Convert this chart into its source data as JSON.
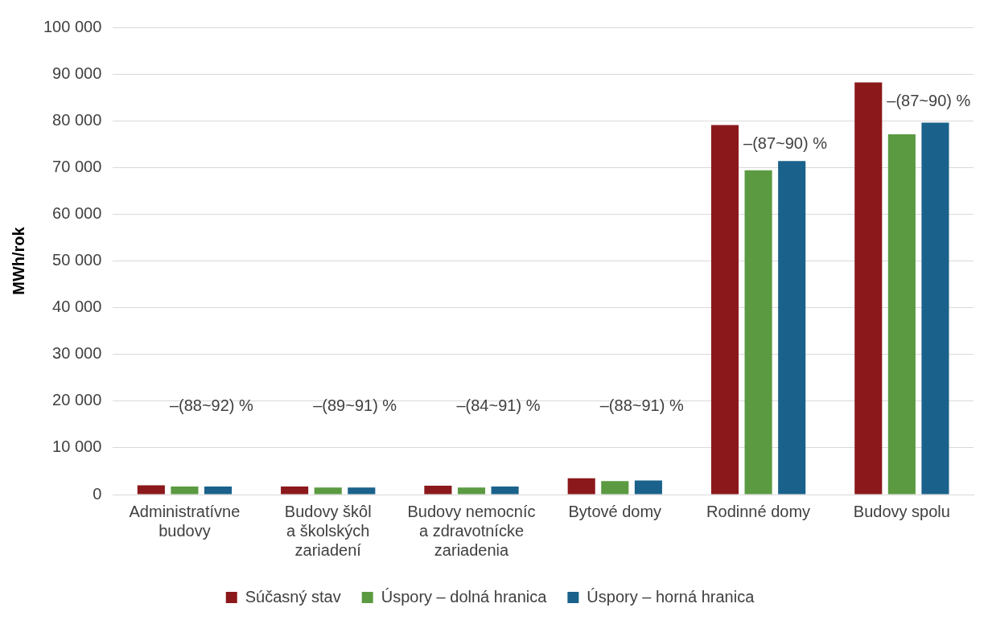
{
  "chart_data": {
    "type": "bar",
    "ylabel": "MWh/rok",
    "categories": [
      "Administratívne\nbudovy",
      "Budovy škôl\na školských\nzariadení",
      "Budovy nemocníc\na zdravotnícke\nzariadenia",
      "Bytové domy",
      "Rodinné domy",
      "Budovy spolu"
    ],
    "series": [
      {
        "name": "Súčasný stav",
        "color": "#8b181b",
        "values": [
          2000,
          1700,
          1900,
          3500,
          79100,
          88200
        ]
      },
      {
        "name": "Úspory – dolná hranica",
        "color": "#5b9a41",
        "values": [
          1700,
          1500,
          1500,
          2900,
          69400,
          77100
        ]
      },
      {
        "name": "Úspory – horná hranica",
        "color": "#1a628b",
        "values": [
          1700,
          1500,
          1700,
          3000,
          71400,
          79600
        ]
      }
    ],
    "ylim": [
      0,
      100000
    ],
    "yticks": [
      {
        "value": 0,
        "label": "0"
      },
      {
        "value": 10000,
        "label": "10 000"
      },
      {
        "value": 20000,
        "label": "20 000"
      },
      {
        "value": 30000,
        "label": "30 000"
      },
      {
        "value": 40000,
        "label": "40 000"
      },
      {
        "value": 50000,
        "label": "50 000"
      },
      {
        "value": 60000,
        "label": "60 000"
      },
      {
        "value": 70000,
        "label": "70 000"
      },
      {
        "value": 80000,
        "label": "80 000"
      },
      {
        "value": 90000,
        "label": "90 000"
      },
      {
        "value": 100000,
        "label": "100 000"
      }
    ],
    "grid": "y",
    "legend": "bottom",
    "annotations": [
      "–(88~92) %",
      "–(89~91) %",
      "–(84~91) %",
      "–(88~91) %",
      "–(87~90) %",
      "–(87~90) %"
    ]
  }
}
